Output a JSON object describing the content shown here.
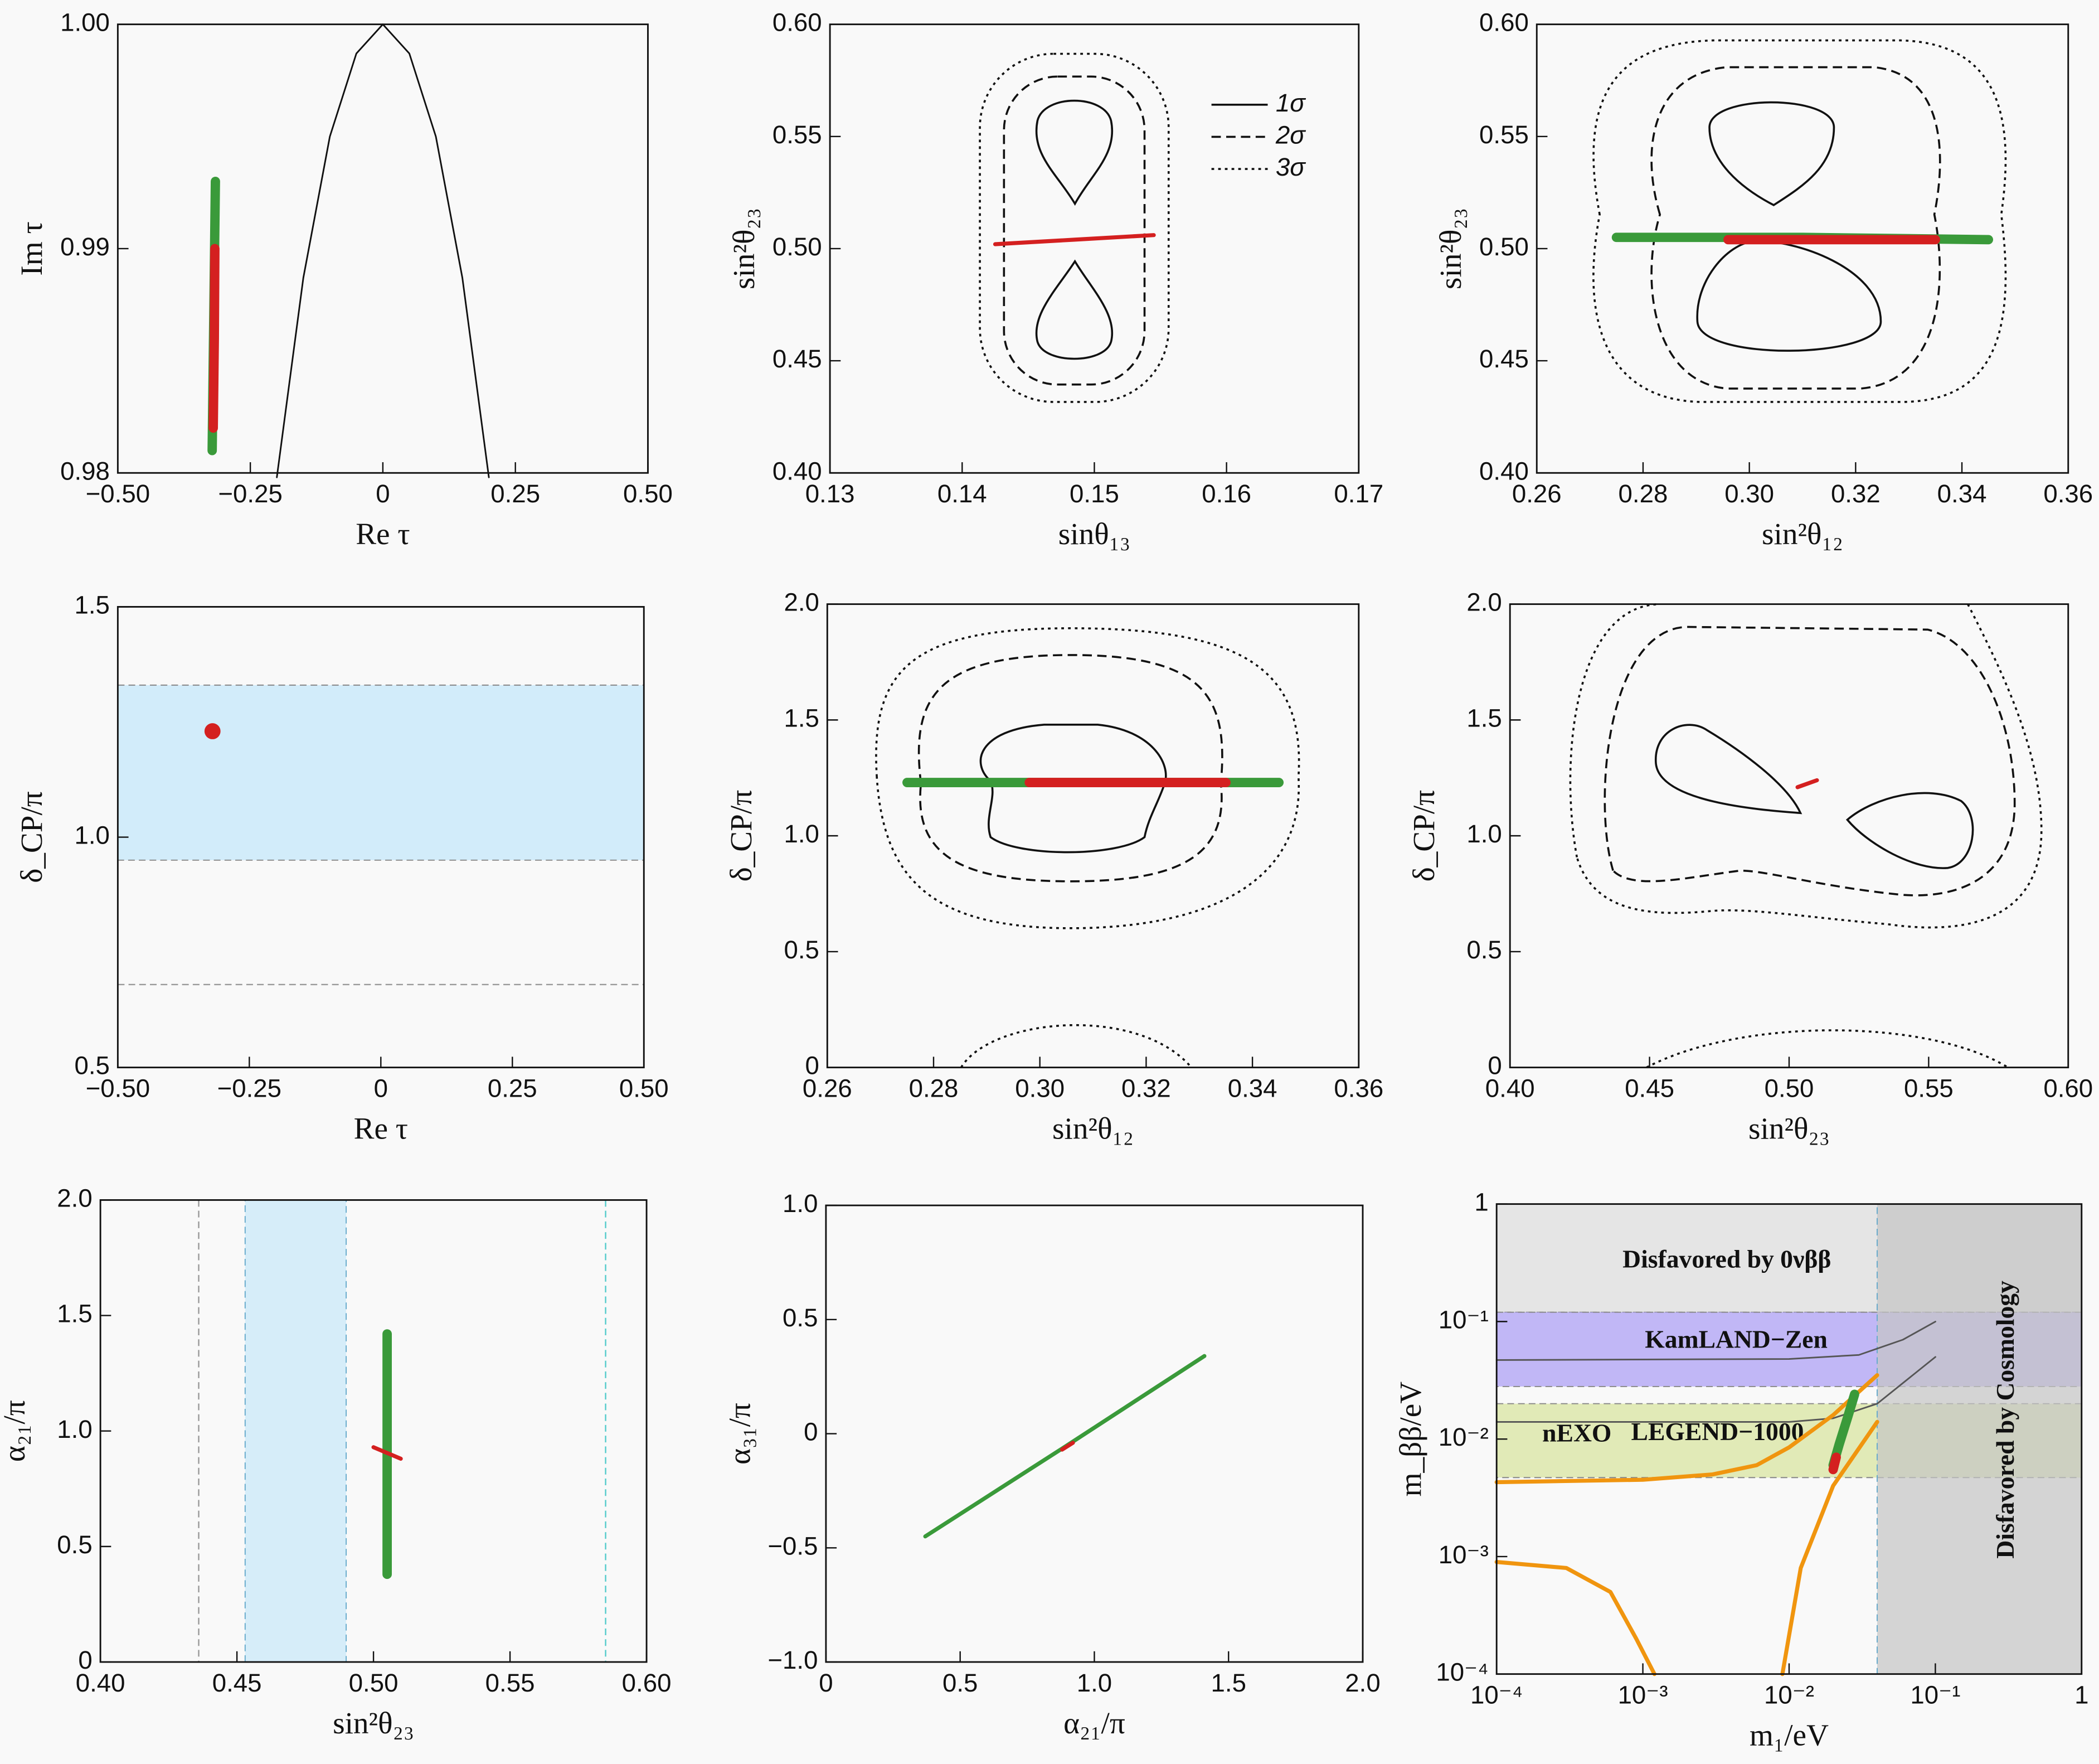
{
  "chart_data": [
    {
      "type": "scatter",
      "xlabel": "Re τ",
      "ylabel": "Im τ",
      "xlim": [
        -0.5,
        0.5
      ],
      "ylim": [
        0.98,
        1.0
      ],
      "xticks": [
        {
          "value": -0.5,
          "label": "−0.50"
        },
        {
          "value": -0.25,
          "label": "−0.25"
        },
        0,
        0.25,
        {
          "value": 0.5,
          "label": "0.50"
        }
      ],
      "yticks": [
        0.98,
        0.99,
        {
          "value": 1,
          "label": "1.00"
        }
      ],
      "series": [
        {
          "color": "#111111",
          "style": "thin",
          "x": [
            -0.2,
            -0.15,
            -0.1,
            -0.05,
            0,
            0.05,
            0.1,
            0.15,
            0.2
          ],
          "values": [
            0.9798,
            0.9887,
            0.995,
            0.9987,
            1,
            0.9987,
            0.995,
            0.9887,
            0.9798
          ]
        },
        {
          "color": "#3a9a3a",
          "style": "thick",
          "x": [
            -0.322,
            -0.32,
            -0.318,
            -0.316
          ],
          "values": [
            0.981,
            0.985,
            0.989,
            0.993
          ]
        },
        {
          "color": "#d42020",
          "style": "thick",
          "x": [
            -0.32,
            -0.318,
            -0.317
          ],
          "values": [
            0.982,
            0.986,
            0.99
          ]
        }
      ]
    },
    {
      "type": "scatter",
      "xlabel": "sinθ₁₃",
      "ylabel": "sin²θ₂₃",
      "xlim": [
        0.13,
        0.17
      ],
      "ylim": [
        0.4,
        0.6
      ],
      "xticks": [
        0.13,
        0.14,
        0.15,
        0.16,
        0.17
      ],
      "yticks": [
        {
          "value": 0.4,
          "label": "0.40"
        },
        0.45,
        {
          "value": 0.5,
          "label": "0.50"
        },
        0.55,
        {
          "value": 0.6,
          "label": "0.60"
        }
      ],
      "legend": {
        "entries": [
          "1σ",
          "2σ",
          "3σ"
        ],
        "position": "upper right"
      },
      "series": [
        {
          "color": "#d42020",
          "style": "medium",
          "x": [
            0.1425,
            0.1485,
            0.1545
          ],
          "values": [
            0.502,
            0.504,
            0.506
          ]
        }
      ]
    },
    {
      "type": "scatter",
      "xlabel": "sin²θ₁₂",
      "ylabel": "sin²θ₂₃",
      "xlim": [
        0.26,
        0.36
      ],
      "ylim": [
        0.4,
        0.6
      ],
      "xticks": [
        0.26,
        0.28,
        {
          "value": 0.3,
          "label": "0.30"
        },
        0.32,
        0.34,
        0.36
      ],
      "yticks": [
        {
          "value": 0.4,
          "label": "0.40"
        },
        0.45,
        {
          "value": 0.5,
          "label": "0.50"
        },
        0.55,
        {
          "value": 0.6,
          "label": "0.60"
        }
      ],
      "series": [
        {
          "color": "#3a9a3a",
          "style": "thick",
          "x": [
            0.275,
            0.31,
            0.345
          ],
          "values": [
            0.505,
            0.505,
            0.504
          ]
        },
        {
          "color": "#d42020",
          "style": "thick",
          "x": [
            0.296,
            0.315,
            0.335
          ],
          "values": [
            0.504,
            0.504,
            0.504
          ]
        }
      ]
    },
    {
      "type": "scatter",
      "xlabel": "Re τ",
      "ylabel": "δ_CP/π",
      "xlim": [
        -0.5,
        0.5
      ],
      "ylim": [
        0.5,
        1.5
      ],
      "xticks": [
        {
          "value": -0.5,
          "label": "−0.50"
        },
        {
          "value": -0.25,
          "label": "−0.25"
        },
        0,
        0.25,
        {
          "value": 0.5,
          "label": "0.50"
        }
      ],
      "yticks": [
        0.5,
        {
          "value": 1,
          "label": "1.0"
        },
        1.5
      ],
      "bands": [
        {
          "axis": "y",
          "range": [
            0.95,
            1.33
          ],
          "color": "#c8e8fa"
        }
      ],
      "refs": [
        {
          "axis": "y",
          "value": 0.68,
          "color": "#999999"
        }
      ],
      "series": [
        {
          "color": "#d42020",
          "style": "dot",
          "x": [
            -0.32
          ],
          "values": [
            1.23
          ]
        }
      ]
    },
    {
      "type": "scatter",
      "xlabel": "sin²θ₁₂",
      "ylabel": "δ_CP/π",
      "xlim": [
        0.26,
        0.36
      ],
      "ylim": [
        0,
        2
      ],
      "xticks": [
        0.26,
        0.28,
        {
          "value": 0.3,
          "label": "0.30"
        },
        0.32,
        0.34,
        0.36
      ],
      "yticks": [
        0,
        0.5,
        {
          "value": 1,
          "label": "1.0"
        },
        1.5,
        {
          "value": 2,
          "label": "2.0"
        }
      ],
      "series": [
        {
          "color": "#3a9a3a",
          "style": "thick",
          "x": [
            0.275,
            0.31,
            0.345
          ],
          "values": [
            1.23,
            1.23,
            1.23
          ]
        },
        {
          "color": "#d42020",
          "style": "thick",
          "x": [
            0.298,
            0.315,
            0.335
          ],
          "values": [
            1.23,
            1.23,
            1.23
          ]
        }
      ]
    },
    {
      "type": "scatter",
      "xlabel": "sin²θ₂₃",
      "ylabel": "δ_CP/π",
      "xlim": [
        0.4,
        0.6
      ],
      "ylim": [
        0,
        2
      ],
      "xticks": [
        {
          "value": 0.4,
          "label": "0.40"
        },
        0.45,
        {
          "value": 0.5,
          "label": "0.50"
        },
        0.55,
        {
          "value": 0.6,
          "label": "0.60"
        }
      ],
      "yticks": [
        0,
        0.5,
        {
          "value": 1,
          "label": "1.0"
        },
        1.5,
        {
          "value": 2,
          "label": "2.0"
        }
      ],
      "series": [
        {
          "color": "#d42020",
          "style": "medium",
          "x": [
            0.503,
            0.51
          ],
          "values": [
            1.21,
            1.24
          ]
        }
      ]
    },
    {
      "type": "scatter",
      "xlabel": "sin²θ₂₃",
      "ylabel": "α₂₁/π",
      "xlim": [
        0.4,
        0.6
      ],
      "ylim": [
        0,
        2
      ],
      "xticks": [
        {
          "value": 0.4,
          "label": "0.40"
        },
        0.45,
        {
          "value": 0.5,
          "label": "0.50"
        },
        0.55,
        {
          "value": 0.6,
          "label": "0.60"
        }
      ],
      "yticks": [
        0,
        0.5,
        {
          "value": 1,
          "label": "1.0"
        },
        1.5,
        {
          "value": 2,
          "label": "2.0"
        }
      ],
      "bands": [
        {
          "axis": "x",
          "range": [
            0.453,
            0.49
          ],
          "color": "#c8e8fa"
        }
      ],
      "refs": [
        {
          "axis": "x",
          "value": 0.436,
          "color": "#999999"
        },
        {
          "axis": "x",
          "value": 0.585,
          "color": "#55cccc"
        }
      ],
      "series": [
        {
          "color": "#3a9a3a",
          "style": "thick",
          "x": [
            0.505,
            0.505
          ],
          "values": [
            0.38,
            1.42
          ]
        },
        {
          "color": "#d42020",
          "style": "medium",
          "x": [
            0.5,
            0.51
          ],
          "values": [
            0.93,
            0.88
          ]
        }
      ]
    },
    {
      "type": "scatter",
      "xlabel": "α₂₁/π",
      "ylabel": "α₃₁/π",
      "xlim": [
        0,
        2
      ],
      "ylim": [
        -1,
        1
      ],
      "xticks": [
        0,
        0.5,
        {
          "value": 1,
          "label": "1.0"
        },
        1.5,
        {
          "value": 2,
          "label": "2.0"
        }
      ],
      "yticks": [
        {
          "value": -1,
          "label": "−1.0"
        },
        {
          "value": -0.5,
          "label": "−0.5"
        },
        0,
        0.5,
        {
          "value": 1,
          "label": "1.0"
        }
      ],
      "series": [
        {
          "color": "#3a9a3a",
          "style": "medium",
          "x": [
            0.37,
            0.9,
            1.41
          ],
          "values": [
            -0.45,
            -0.05,
            0.34
          ]
        },
        {
          "color": "#d42020",
          "style": "medium",
          "x": [
            0.88,
            0.92
          ],
          "values": [
            -0.07,
            -0.04
          ]
        }
      ]
    },
    {
      "type": "scatter",
      "xlabel": "m₁/eV",
      "ylabel": "m_ββ/eV",
      "xlim": [
        0.0001,
        1
      ],
      "ylim": [
        0.0001,
        1
      ],
      "xlog": true,
      "ylog": true,
      "xticks": [
        {
          "value": 0.0001,
          "label": "10⁻⁴"
        },
        {
          "value": 0.001,
          "label": "10⁻³"
        },
        {
          "value": 0.01,
          "label": "10⁻²"
        },
        {
          "value": 0.1,
          "label": "10⁻¹"
        },
        1
      ],
      "yticks": [
        {
          "value": 0.0001,
          "label": "10⁻⁴"
        },
        {
          "value": 0.001,
          "label": "10⁻³"
        },
        {
          "value": 0.01,
          "label": "10⁻²"
        },
        {
          "value": 0.1,
          "label": "10⁻¹"
        },
        1
      ],
      "bands": [
        {
          "axis": "y",
          "range": [
            0.12,
            1
          ],
          "color": "#e0e0e0"
        },
        {
          "axis": "y",
          "range": [
            0.028,
            0.12
          ],
          "color": "#b3a6f5"
        },
        {
          "axis": "y",
          "range": [
            0.0047,
            0.02
          ],
          "color": "#dbe6a6"
        },
        {
          "axis": "x",
          "range": [
            0.04,
            1
          ],
          "color": "#c4c4c4"
        }
      ],
      "annotations": [
        {
          "text": "Disfavored by 0νββ",
          "color": "#111111"
        },
        {
          "text": "KamLAND−Zen",
          "color": "#6a5acd"
        },
        {
          "text": "LEGEND−1000",
          "color": "#1a8a9a"
        },
        {
          "text": "nEXO",
          "color": "#333333"
        },
        {
          "text": "Disfavored by Cosmology",
          "color": "#111111"
        }
      ],
      "series": [
        {
          "color": "#555555",
          "style": "thin",
          "x": [
            0.0001,
            0.01,
            0.03,
            0.06,
            0.1
          ],
          "values": [
            0.047,
            0.048,
            0.052,
            0.07,
            0.1
          ]
        },
        {
          "color": "#555555",
          "style": "thin",
          "x": [
            0.0001,
            0.01,
            0.02,
            0.04,
            0.1
          ],
          "values": [
            0.014,
            0.014,
            0.015,
            0.02,
            0.05
          ]
        },
        {
          "color": "#f0950f",
          "style": "medium",
          "x": [
            0.0001,
            0.001,
            0.003,
            0.006,
            0.01,
            0.02,
            0.04
          ],
          "values": [
            0.0043,
            0.0045,
            0.005,
            0.006,
            0.0085,
            0.016,
            0.035
          ]
        },
        {
          "color": "#f0950f",
          "style": "medium",
          "x": [
            0.0001,
            0.0003,
            0.0006,
            0.0009,
            0.0012
          ],
          "values": [
            0.0009,
            0.0008,
            0.0005,
            0.0002,
            0.0001
          ]
        },
        {
          "color": "#f0950f",
          "style": "medium",
          "x": [
            0.009,
            0.012,
            0.02,
            0.04
          ],
          "values": [
            0.0001,
            0.0008,
            0.004,
            0.014
          ]
        },
        {
          "color": "#3a9a3a",
          "style": "thick",
          "x": [
            0.02,
            0.022,
            0.025,
            0.028
          ],
          "values": [
            0.006,
            0.009,
            0.015,
            0.024
          ]
        },
        {
          "color": "#d42020",
          "style": "thick",
          "x": [
            0.02,
            0.021
          ],
          "values": [
            0.0055,
            0.007
          ]
        }
      ]
    }
  ]
}
